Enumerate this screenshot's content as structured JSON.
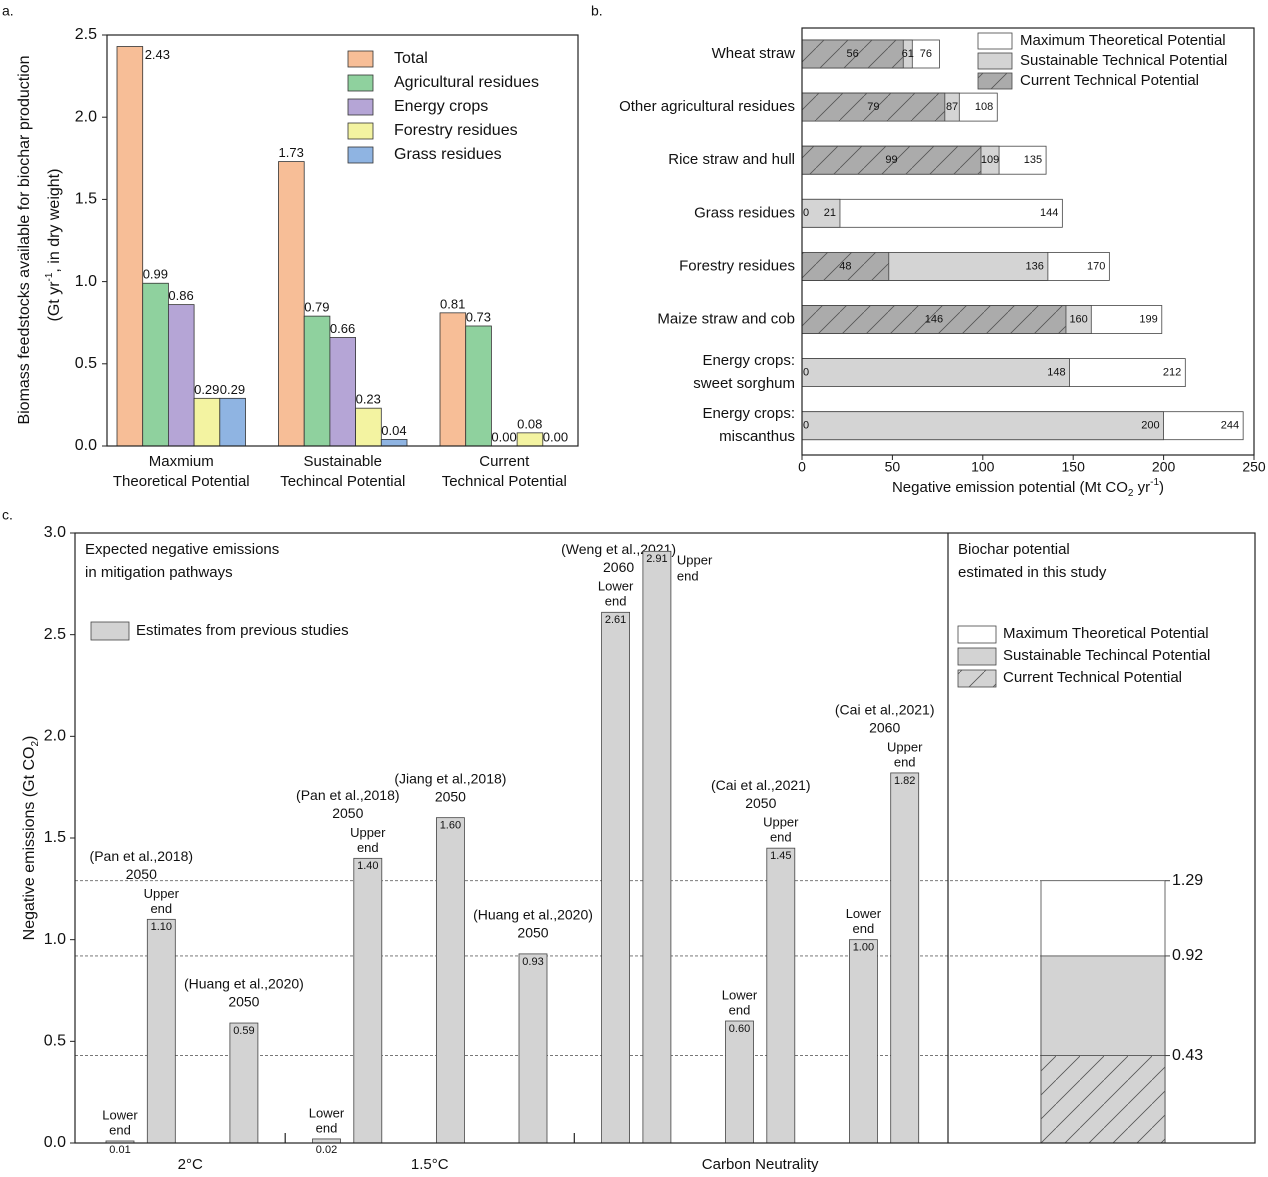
{
  "chart_data": [
    {
      "type": "bar",
      "panel": "a.",
      "y_label": [
        [
          "Biomass feedstocks available for biochar production"
        ],
        [
          "(Gt yr",
          "-1",
          ", in dry weight)"
        ]
      ],
      "categories": [
        [
          "Maxmium",
          "Theoretical Potential"
        ],
        [
          "Sustainable",
          "Techincal Potential"
        ],
        [
          "Current",
          "Technical Potential"
        ]
      ],
      "series": [
        {
          "name": "Total",
          "color": "#f7be97",
          "values": [
            2.43,
            1.73,
            0.81
          ],
          "value_labels": [
            "2.43",
            "1.73",
            "0.81"
          ]
        },
        {
          "name": "Agricultural residues",
          "color": "#8fd19e",
          "values": [
            0.99,
            0.79,
            0.73
          ],
          "value_labels": [
            "0.99",
            "0.79",
            "0.73"
          ]
        },
        {
          "name": "Energy crops",
          "color": "#b5a5d6",
          "values": [
            0.86,
            0.66,
            0
          ],
          "value_labels": [
            "0.86",
            "0.66",
            "0.00"
          ]
        },
        {
          "name": "Forestry residues",
          "color": "#f3f3a1",
          "values": [
            0.29,
            0.23,
            0.08
          ],
          "value_labels": [
            "0.29",
            "0.23",
            "0.08"
          ]
        },
        {
          "name": "Grass residues",
          "color": "#8fb4e2",
          "values": [
            0.29,
            0.04,
            0
          ],
          "value_labels": [
            "0.29",
            "0.04",
            "0.00"
          ]
        }
      ],
      "ylim": [
        0,
        2.5
      ],
      "yticks": [
        {
          "value": 0,
          "label": "0.0"
        },
        0.5,
        {
          "value": 1,
          "label": "1.0"
        },
        1.5,
        {
          "value": 2,
          "label": "2.0"
        },
        2.5
      ],
      "legend": "upper right"
    },
    {
      "type": "barh",
      "panel": "b.",
      "categories": [
        [
          "Wheat straw"
        ],
        [
          "Other agricultural residues"
        ],
        [
          "Rice straw and hull"
        ],
        [
          "Grass residues"
        ],
        [
          "Forestry residues"
        ],
        [
          "Maize straw and cob"
        ],
        [
          "Energy crops:",
          "sweet sorghum"
        ],
        [
          "Energy crops:",
          "miscanthus"
        ]
      ],
      "series": [
        {
          "name": "Maximum Theoretical Potential",
          "color": "#ffffff",
          "values": [
            76,
            108,
            135,
            144,
            170,
            199,
            212,
            244
          ]
        },
        {
          "name": "Sustainable Technical Potential",
          "color": "#d4d4d4",
          "values": [
            61,
            87,
            109,
            21,
            136,
            160,
            148,
            200
          ]
        },
        {
          "name": "Current Technical Potential",
          "color": "#ababab",
          "hatch": true,
          "values": [
            56,
            79,
            99,
            0,
            48,
            146,
            0,
            0
          ]
        }
      ],
      "xlim": [
        0,
        250
      ],
      "xticks": [
        0,
        50,
        100,
        150,
        200,
        250
      ],
      "x_label": [
        "Negative emission potential (Mt CO",
        "2",
        " yr",
        "-1",
        ")"
      ],
      "legend": "upper right"
    },
    {
      "type": "bar",
      "panel": "c.",
      "y_label": [
        "Negative emissions (Gt CO",
        "2",
        ")"
      ],
      "ylim": [
        0,
        3
      ],
      "yticks": [
        {
          "value": 0,
          "label": "0.0"
        },
        0.5,
        {
          "value": 1,
          "label": "1.0"
        },
        1.5,
        {
          "value": 2,
          "label": "2.0"
        },
        2.5,
        {
          "value": 3,
          "label": "3.0"
        }
      ],
      "title": [
        "Expected negative emissions",
        "in mitigation pathways"
      ],
      "legend_label": "Estimates from previous studies",
      "color": "#d3d3d3",
      "values": [
        0.01,
        1.1,
        0.59,
        0.02,
        1.4,
        1.6,
        0.93,
        2.61,
        2.91,
        0.6,
        1.45,
        1.0,
        1.82
      ],
      "value_labels": [
        "0.01",
        "1.10",
        "0.59",
        "0.02",
        "1.40",
        "1.60",
        "0.93",
        "2.61",
        "2.91",
        "0.60",
        "1.45",
        "1.00",
        "1.82"
      ],
      "end_labels": [
        [
          "Lower",
          "end"
        ],
        [
          "Upper",
          "end"
        ],
        null,
        [
          "Lower",
          "end"
        ],
        [
          "Upper",
          "end"
        ],
        null,
        null,
        [
          "Lower",
          "end"
        ],
        [
          "Upper",
          "end"
        ],
        [
          "Lower",
          "end"
        ],
        [
          "Upper",
          "end"
        ],
        [
          "Lower",
          "end"
        ],
        [
          "Upper",
          "end"
        ]
      ],
      "notes": [
        null,
        [
          "(Pan et al.,2018)",
          "2050"
        ],
        [
          "(Huang et al.,2020)",
          "2050"
        ],
        null,
        [
          "(Pan et al.,2018)",
          "2050"
        ],
        [
          "(Jiang et al.,2018)",
          "2050"
        ],
        [
          "(Huang et al.,2020)",
          "2050"
        ],
        [
          "(Weng et al.,2021)",
          "2060"
        ],
        null,
        null,
        [
          "(Cai et al.,2021)",
          "2050"
        ],
        null,
        [
          "(Cai et al.,2021)",
          "2060"
        ]
      ],
      "groups": [
        "2°C",
        "1.5°C",
        "Carbon Neutrality"
      ],
      "study": {
        "type": "bar",
        "title": [
          "Biochar potential",
          "estimated in this study"
        ],
        "series": [
          {
            "name": "Maximum Theoretical Potential",
            "color": "#ffffff",
            "values": [
              1.29
            ]
          },
          {
            "name": "Sustainable Techincal Potential",
            "color": "#d3d3d3",
            "values": [
              0.92
            ]
          },
          {
            "name": "Current Technical Potential",
            "color": "#d3d3d3",
            "hatch": true,
            "values": [
              0.43
            ]
          }
        ]
      }
    }
  ]
}
